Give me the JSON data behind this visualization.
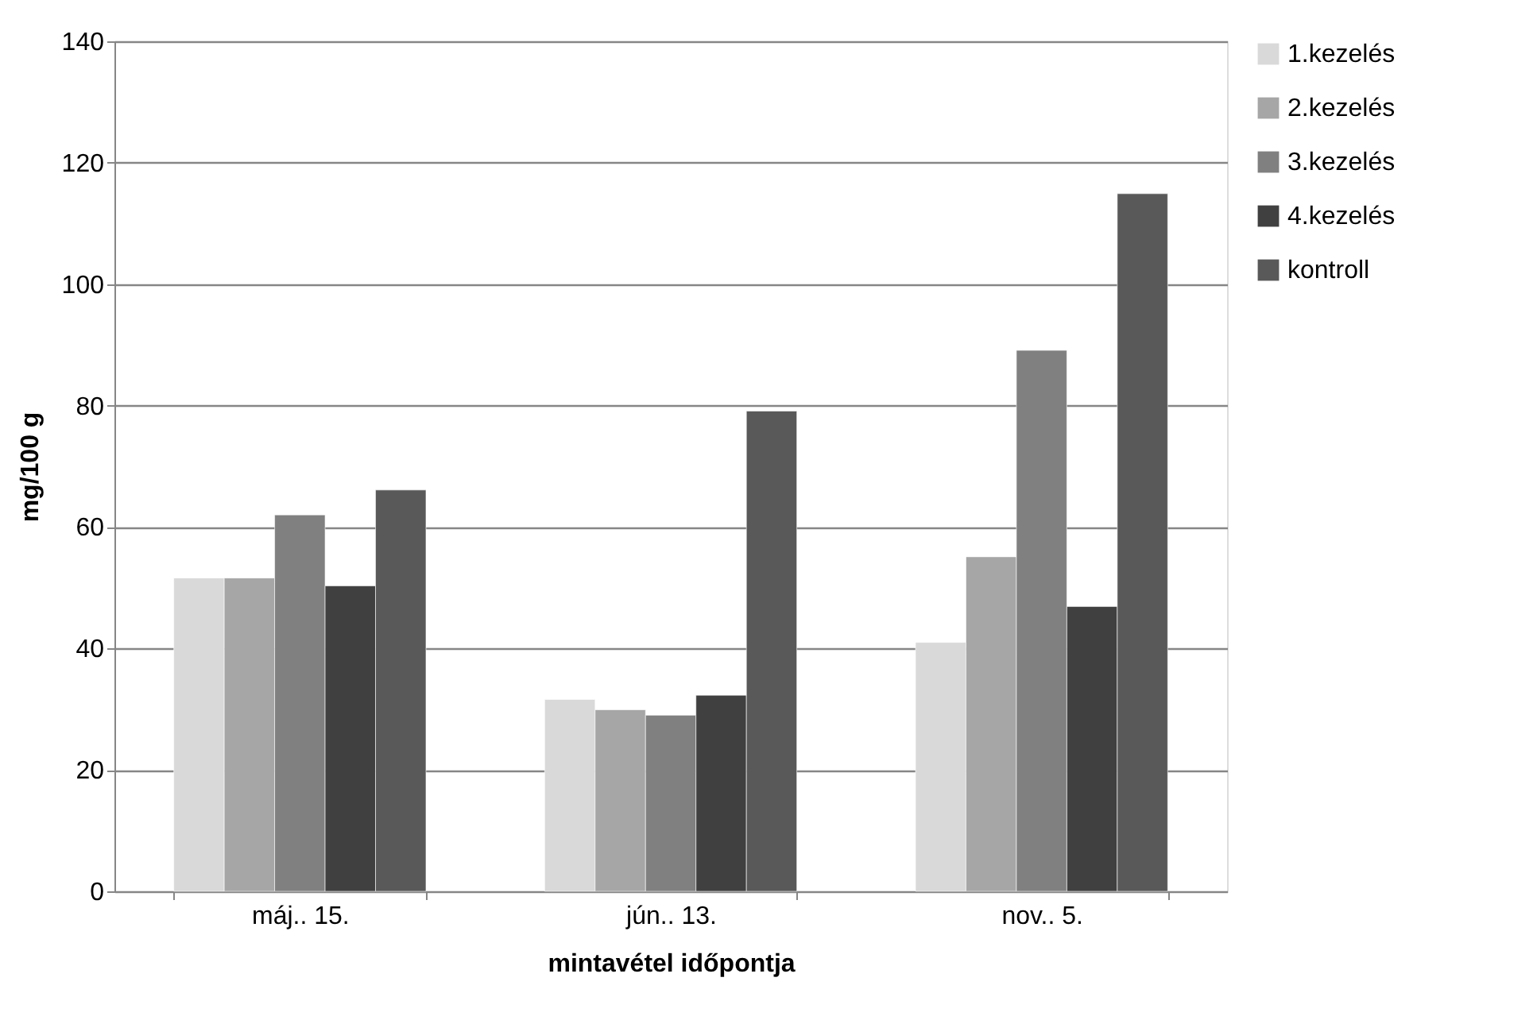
{
  "chart_data": {
    "type": "bar",
    "xlabel": "mintavétel időpontja",
    "ylabel": "mg/100 g",
    "categories": [
      "máj.. 15.",
      "jún.. 13.",
      "nov.. 5."
    ],
    "series": [
      {
        "name": "1.kezelés",
        "color": "#d9d9d9",
        "values": [
          51.6,
          31.6,
          41.0
        ]
      },
      {
        "name": "2.kezelés",
        "color": "#a6a6a6",
        "values": [
          51.6,
          29.9,
          55.1
        ]
      },
      {
        "name": "3.kezelés",
        "color": "#808080",
        "values": [
          62.0,
          29.0,
          89.1
        ]
      },
      {
        "name": "4.kezelés",
        "color": "#404040",
        "values": [
          50.3,
          32.3,
          46.9
        ]
      },
      {
        "name": "kontroll",
        "color": "#595959",
        "values": [
          66.1,
          79.1,
          114.9
        ]
      }
    ],
    "ylim": [
      0,
      140
    ],
    "yticks": [
      0,
      20,
      40,
      60,
      80,
      100,
      120,
      140
    ],
    "grid": "y",
    "legend": "right"
  }
}
